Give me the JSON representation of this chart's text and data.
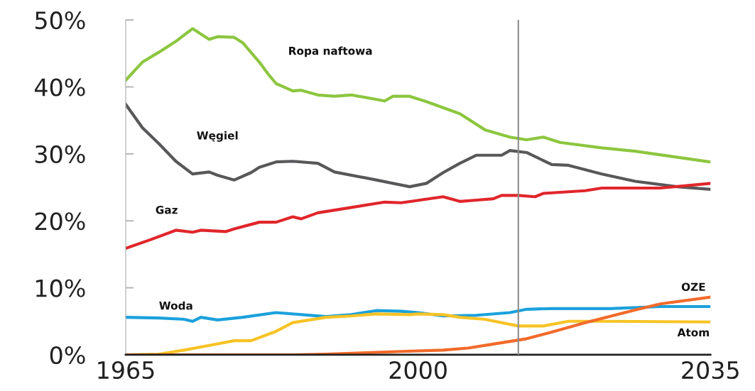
{
  "chart_data": {
    "type": "line",
    "xlim": [
      1965,
      2035
    ],
    "xticks": [
      1965,
      2000,
      2035
    ],
    "ylim": [
      0,
      50
    ],
    "yticks": [
      {
        "value": 0,
        "label": "0%"
      },
      {
        "value": 10,
        "label": "10%"
      },
      {
        "value": 20,
        "label": "20%"
      },
      {
        "value": 30,
        "label": "30%"
      },
      {
        "value": 40,
        "label": "40%"
      },
      {
        "value": 50,
        "label": "50%"
      }
    ],
    "grid": false,
    "marker": "none",
    "line_style": "solid",
    "series": [
      {
        "name": "Ropa naftowa",
        "color": "#8cc63f",
        "x": [
          1965,
          1967,
          1969,
          1971,
          1973,
          1974,
          1975,
          1976,
          1978,
          1979,
          1981,
          1982,
          1983,
          1985,
          1986,
          1988,
          1990,
          1992,
          1996,
          1997,
          1999,
          2001,
          2005,
          2008,
          2011,
          2013,
          2015,
          2017,
          2022,
          2026,
          2035
        ],
        "values": [
          41.0,
          43.7,
          45.2,
          46.8,
          48.7,
          47.9,
          47.1,
          47.5,
          47.4,
          46.6,
          43.7,
          42.0,
          40.5,
          39.4,
          39.5,
          38.8,
          38.6,
          38.8,
          37.9,
          38.6,
          38.6,
          37.8,
          36.0,
          33.6,
          32.5,
          32.1,
          32.5,
          31.7,
          30.9,
          30.4,
          28.8
        ]
      },
      {
        "name": "Węgiel",
        "color": "#58585a",
        "x": [
          1965,
          1967,
          1969,
          1971,
          1973,
          1975,
          1976,
          1978,
          1980,
          1981,
          1983,
          1985,
          1988,
          1990,
          1995,
          1999,
          2001,
          2003,
          2005,
          2007,
          2010,
          2011,
          2013,
          2016,
          2018,
          2022,
          2026,
          2031,
          2035
        ],
        "values": [
          37.4,
          33.9,
          31.5,
          28.9,
          27.0,
          27.3,
          26.8,
          26.1,
          27.2,
          28.0,
          28.8,
          28.9,
          28.6,
          27.3,
          26.1,
          25.1,
          25.6,
          27.2,
          28.6,
          29.8,
          29.8,
          30.5,
          30.2,
          28.4,
          28.3,
          27.0,
          25.9,
          25.1,
          24.7
        ]
      },
      {
        "name": "Gaz",
        "color": "#e0262b",
        "x": [
          1965,
          1968,
          1971,
          1973,
          1974,
          1977,
          1978,
          1981,
          1983,
          1985,
          1986,
          1988,
          1992,
          1996,
          1998,
          2003,
          2005,
          2007,
          2009,
          2010,
          2012,
          2014,
          2015,
          2020,
          2022,
          2029,
          2035
        ],
        "values": [
          15.9,
          17.2,
          18.6,
          18.3,
          18.6,
          18.4,
          18.8,
          19.8,
          19.8,
          20.6,
          20.3,
          21.2,
          22.0,
          22.8,
          22.7,
          23.6,
          22.9,
          23.1,
          23.3,
          23.8,
          23.8,
          23.6,
          24.1,
          24.5,
          24.9,
          24.9,
          25.6
        ]
      },
      {
        "name": "Woda",
        "color": "#1ba1dc",
        "x": [
          1965,
          1969,
          1972,
          1973,
          1974,
          1976,
          1979,
          1983,
          1989,
          1992,
          1995,
          1998,
          2000,
          2003,
          2007,
          2011,
          2013,
          2016,
          2023,
          2029,
          2035
        ],
        "values": [
          5.6,
          5.5,
          5.3,
          5.0,
          5.6,
          5.2,
          5.6,
          6.3,
          5.7,
          6.0,
          6.6,
          6.5,
          6.3,
          5.8,
          5.9,
          6.3,
          6.8,
          6.9,
          6.9,
          7.2,
          7.2
        ]
      },
      {
        "name": "Atom",
        "color": "#f7c325",
        "x": [
          1965,
          1969,
          1972,
          1975,
          1978,
          1980,
          1983,
          1985,
          1989,
          1992,
          1995,
          1999,
          2000,
          2003,
          2005,
          2008,
          2012,
          2015,
          2018,
          2023,
          2035
        ],
        "values": [
          0,
          0.1,
          0.7,
          1.4,
          2.1,
          2.1,
          3.5,
          4.8,
          5.6,
          5.8,
          6.1,
          6.0,
          6.1,
          6.0,
          5.6,
          5.3,
          4.3,
          4.3,
          5.0,
          5.0,
          4.9
        ]
      },
      {
        "name": "OZE",
        "color": "#f26a2a",
        "x": [
          1965,
          1985,
          1989,
          1998,
          2003,
          2006,
          2009,
          2013,
          2016,
          2020,
          2026,
          2029,
          2035
        ],
        "values": [
          0,
          0,
          0.1,
          0.5,
          0.7,
          1.0,
          1.6,
          2.4,
          3.4,
          4.8,
          6.7,
          7.6,
          8.6
        ]
      }
    ],
    "ref_lines": [
      {
        "axis": "x",
        "value": 2012,
        "color": "#8c8c8c"
      }
    ]
  }
}
